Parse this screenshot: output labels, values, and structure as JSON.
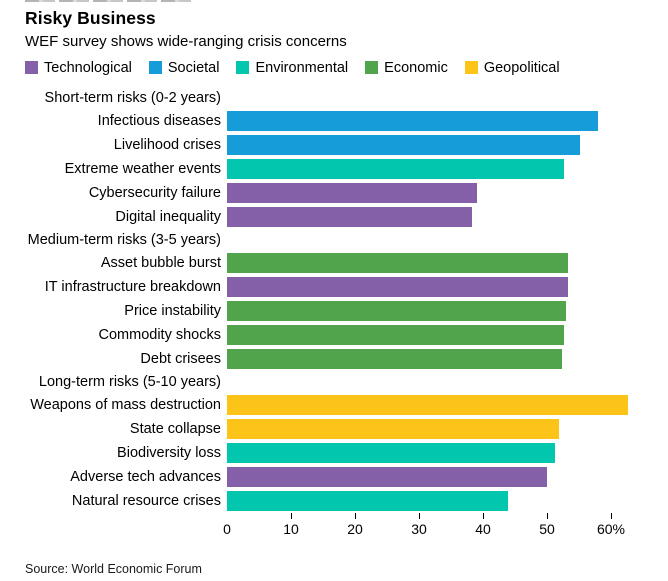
{
  "header": {
    "title": "Risky Business",
    "subtitle": "WEF survey shows wide-ranging crisis concerns"
  },
  "legend": [
    {
      "label": "Technological",
      "color": "#8460a8"
    },
    {
      "label": "Societal",
      "color": "#169dd9"
    },
    {
      "label": "Environmental",
      "color": "#02c7ae"
    },
    {
      "label": "Economic",
      "color": "#52a44c"
    },
    {
      "label": "Geopolitical",
      "color": "#fcc418"
    }
  ],
  "chart_data": {
    "type": "bar",
    "orientation": "horizontal",
    "value_unit": "%",
    "xlim": [
      0,
      65
    ],
    "x_ticks": [
      0,
      10,
      20,
      30,
      40,
      50,
      60
    ],
    "x_tick_labels": [
      "0",
      "10",
      "20",
      "30",
      "40",
      "50",
      "60%"
    ],
    "grid": false,
    "legend_position": "top",
    "sections": [
      {
        "header": "Short-term risks (0-2 years)",
        "rows": [
          {
            "label": "Infectious diseases",
            "value": 58.0,
            "category": "Societal"
          },
          {
            "label": "Livelihood crises",
            "value": 55.1,
            "category": "Societal"
          },
          {
            "label": "Extreme weather events",
            "value": 52.7,
            "category": "Environmental"
          },
          {
            "label": "Cybersecurity failure",
            "value": 39.0,
            "category": "Technological"
          },
          {
            "label": "Digital inequality",
            "value": 38.3,
            "category": "Technological"
          }
        ]
      },
      {
        "header": "Medium-term risks (3-5 years)",
        "rows": [
          {
            "label": "Asset bubble burst",
            "value": 53.3,
            "category": "Economic"
          },
          {
            "label": "IT infrastructure breakdown",
            "value": 53.3,
            "category": "Technological"
          },
          {
            "label": "Price instability",
            "value": 52.9,
            "category": "Economic"
          },
          {
            "label": "Commodity shocks",
            "value": 52.7,
            "category": "Economic"
          },
          {
            "label": "Debt crisees",
            "value": 52.3,
            "category": "Economic"
          }
        ]
      },
      {
        "header": "Long-term risks (5-10 years)",
        "rows": [
          {
            "label": "Weapons of mass destruction",
            "value": 62.7,
            "category": "Geopolitical"
          },
          {
            "label": "State collapse",
            "value": 51.8,
            "category": "Geopolitical"
          },
          {
            "label": "Biodiversity loss",
            "value": 51.2,
            "category": "Environmental"
          },
          {
            "label": "Adverse tech advances",
            "value": 50.0,
            "category": "Technological"
          },
          {
            "label": "Natural resource crises",
            "value": 43.9,
            "category": "Environmental"
          }
        ]
      }
    ]
  },
  "footer": {
    "source": "Source: World Economic Forum"
  }
}
